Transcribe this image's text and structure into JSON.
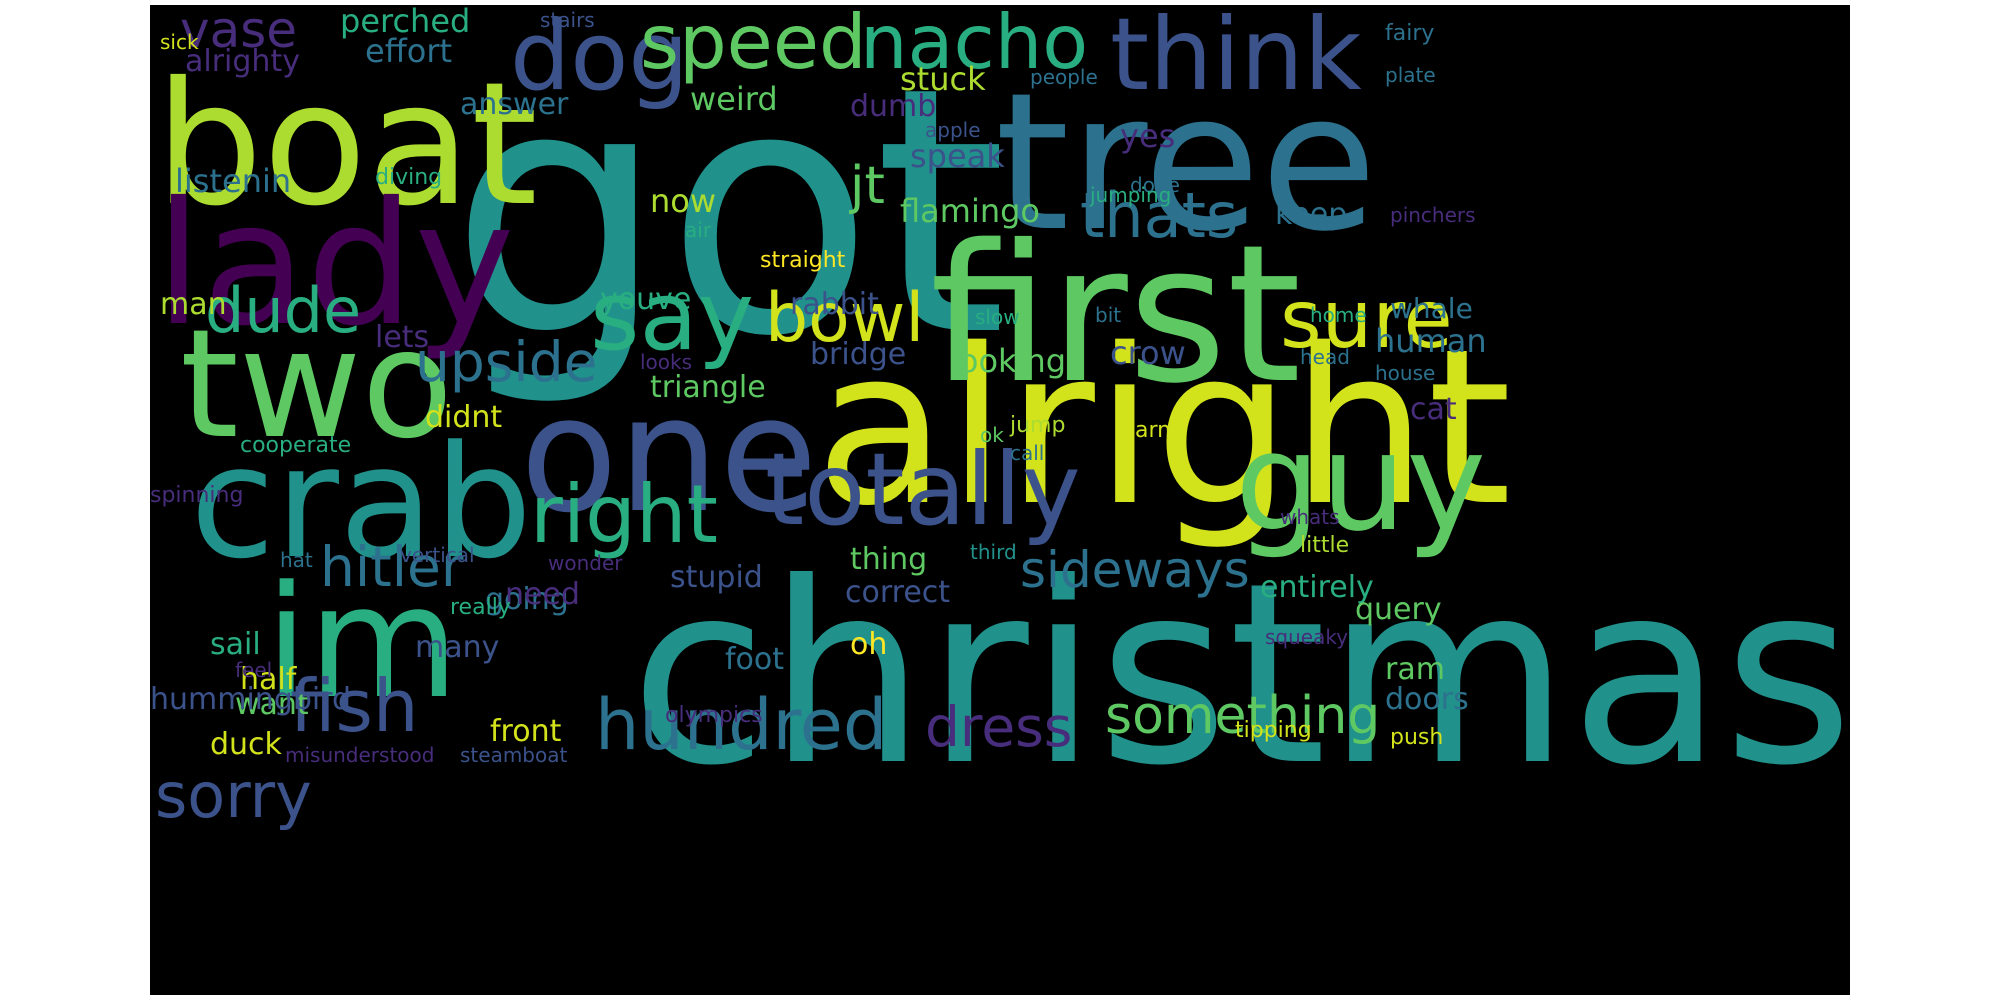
{
  "palette": {
    "background": "#000000",
    "dark_purple": "#440154",
    "purple": "#472d7b",
    "indigo": "#3b528b",
    "blue": "#2c728e",
    "teal": "#21918c",
    "green_teal": "#28ae80",
    "green": "#5ec962",
    "lime": "#addc30",
    "yellow": "#fde725"
  },
  "words": [
    "got",
    "christmas",
    "alright",
    "tree",
    "first",
    "boat",
    "lady",
    "one",
    "crab",
    "two",
    "im",
    "guy",
    "totally",
    "think",
    "nacho",
    "dog",
    "speed",
    "say",
    "sure",
    "right",
    "bowl",
    "hundred",
    "fish",
    "dude",
    "thats",
    "sorry",
    "hitler",
    "upside",
    "sideways",
    "something",
    "dress",
    "vase",
    "jt",
    "flamingo",
    "perched",
    "effort",
    "alrighty",
    "stuck",
    "answer",
    "weird",
    "dumb",
    "listenin",
    "speak",
    "yes",
    "diving",
    "now",
    "youve",
    "rabbit",
    "keep",
    "man",
    "lets",
    "bridge",
    "crow",
    "looking",
    "human",
    "triangle",
    "didnt",
    "cat",
    "cooperate",
    "half",
    "going",
    "entirely",
    "query",
    "thing",
    "correct",
    "stupid",
    "need",
    "sail",
    "many",
    "oh",
    "foot",
    "want",
    "duck",
    "front",
    "ram",
    "doors",
    "push",
    "misunderstood",
    "steamboat",
    "stairs",
    "sick",
    "fairy",
    "plate",
    "people",
    "apple",
    "done",
    "air",
    "straight",
    "jumping",
    "pinchers",
    "whale",
    "bit",
    "home",
    "slow",
    "looks",
    "head",
    "house",
    "ok",
    "spinning",
    "hummingbird",
    "vertical",
    "jump",
    "call",
    "arm",
    "whats",
    "hat",
    "third",
    "wonder",
    "little",
    "really",
    "olympics",
    "tipping",
    "squeaky",
    "feel"
  ]
}
